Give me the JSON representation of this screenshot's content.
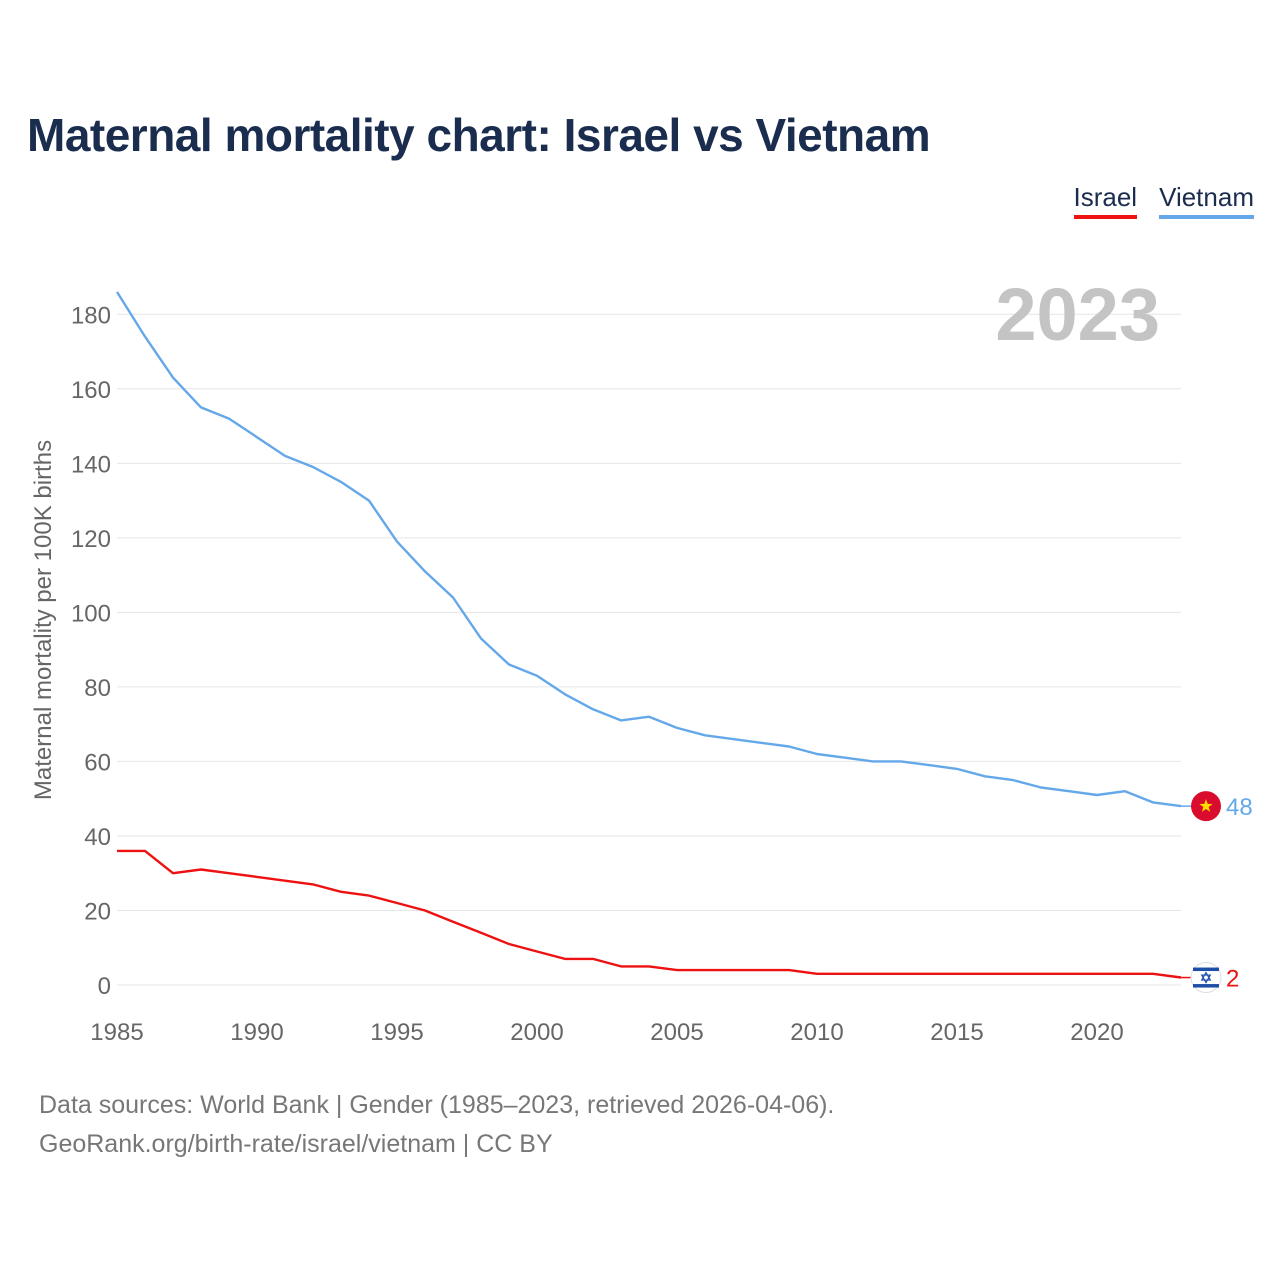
{
  "title": "Maternal mortality chart: Israel vs Vietnam",
  "legend": {
    "israel": "Israel",
    "vietnam": "Vietnam"
  },
  "year_label": "2023",
  "footer": {
    "line1": "Data sources: World Bank | Gender (1985–2023, retrieved 2026-04-06).",
    "line2": "GeoRank.org/birth-rate/israel/vietnam | CC BY"
  },
  "chart_data": {
    "type": "line",
    "title": "Maternal mortality chart: Israel vs Vietnam",
    "xlabel": "",
    "ylabel": "Maternal mortality per 100K births",
    "xlim": [
      1985,
      2023
    ],
    "ylim": [
      0,
      190
    ],
    "grid": true,
    "x_ticks": [
      1985,
      1990,
      1995,
      2000,
      2005,
      2010,
      2015,
      2020
    ],
    "y_ticks": [
      0,
      20,
      40,
      60,
      80,
      100,
      120,
      140,
      160,
      180
    ],
    "x": [
      1985,
      1986,
      1987,
      1988,
      1989,
      1990,
      1991,
      1992,
      1993,
      1994,
      1995,
      1996,
      1997,
      1998,
      1999,
      2000,
      2001,
      2002,
      2003,
      2004,
      2005,
      2006,
      2007,
      2008,
      2009,
      2010,
      2011,
      2012,
      2013,
      2014,
      2015,
      2016,
      2017,
      2018,
      2019,
      2020,
      2021,
      2022,
      2023
    ],
    "series": [
      {
        "name": "Vietnam",
        "color": "#64a8ea",
        "end_label": "48",
        "values": [
          186,
          174,
          163,
          155,
          152,
          147,
          142,
          139,
          135,
          130,
          119,
          111,
          104,
          93,
          86,
          83,
          78,
          74,
          71,
          72,
          69,
          67,
          66,
          65,
          64,
          62,
          61,
          60,
          60,
          59,
          58,
          56,
          55,
          53,
          52,
          51,
          52,
          49,
          48
        ]
      },
      {
        "name": "Israel",
        "color": "#ee1111",
        "end_label": "2",
        "values": [
          36,
          36,
          30,
          31,
          30,
          29,
          28,
          27,
          25,
          24,
          22,
          20,
          17,
          14,
          11,
          9,
          7,
          7,
          5,
          5,
          4,
          4,
          4,
          4,
          4,
          3,
          3,
          3,
          3,
          3,
          3,
          3,
          3,
          3,
          3,
          3,
          3,
          3,
          2
        ]
      }
    ]
  }
}
